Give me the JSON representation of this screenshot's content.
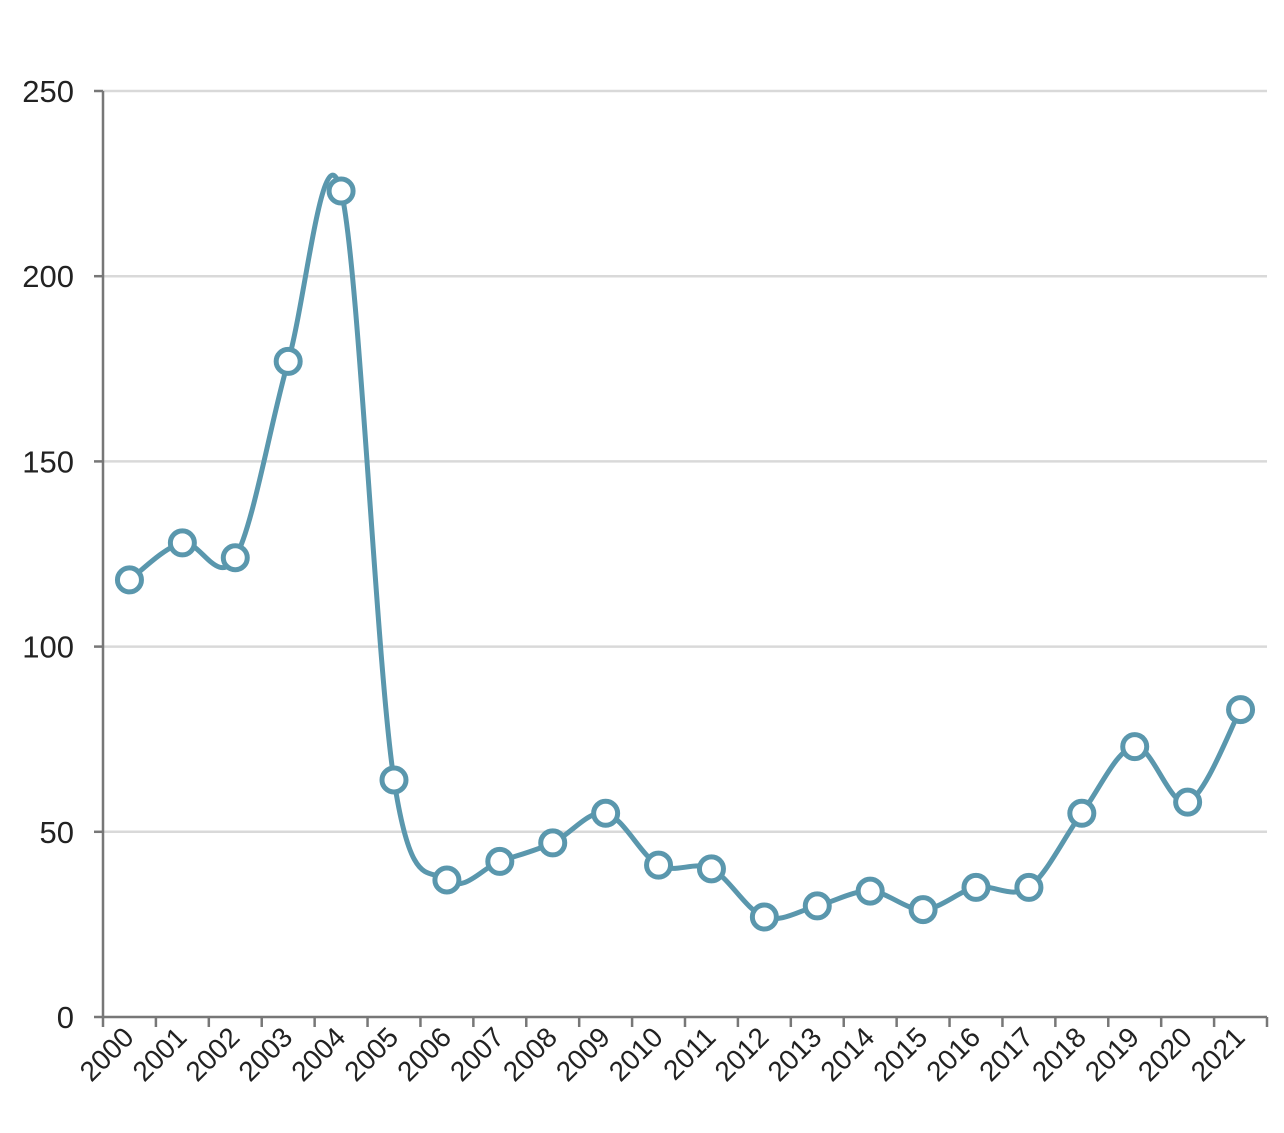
{
  "chart_data": {
    "type": "line",
    "title": "",
    "xlabel": "",
    "ylabel": "",
    "categories": [
      "2000",
      "2001",
      "2002",
      "2003",
      "2004",
      "2005",
      "2006",
      "2007",
      "2008",
      "2009",
      "2010",
      "2011",
      "2012",
      "2013",
      "2014",
      "2015",
      "2016",
      "2017",
      "2018",
      "2019",
      "2020",
      "2021"
    ],
    "series": [
      {
        "values": [
          118,
          128,
          124,
          177,
          223,
          64,
          37,
          42,
          47,
          55,
          41,
          40,
          27,
          30,
          34,
          29,
          35,
          35,
          55,
          73,
          58,
          83
        ],
        "color": "#5a97ad"
      }
    ],
    "ylim": [
      0,
      250
    ],
    "yticks": [
      0,
      50,
      100,
      150,
      200,
      250
    ],
    "grid": true,
    "smooth": true,
    "marker": "open-circle"
  }
}
